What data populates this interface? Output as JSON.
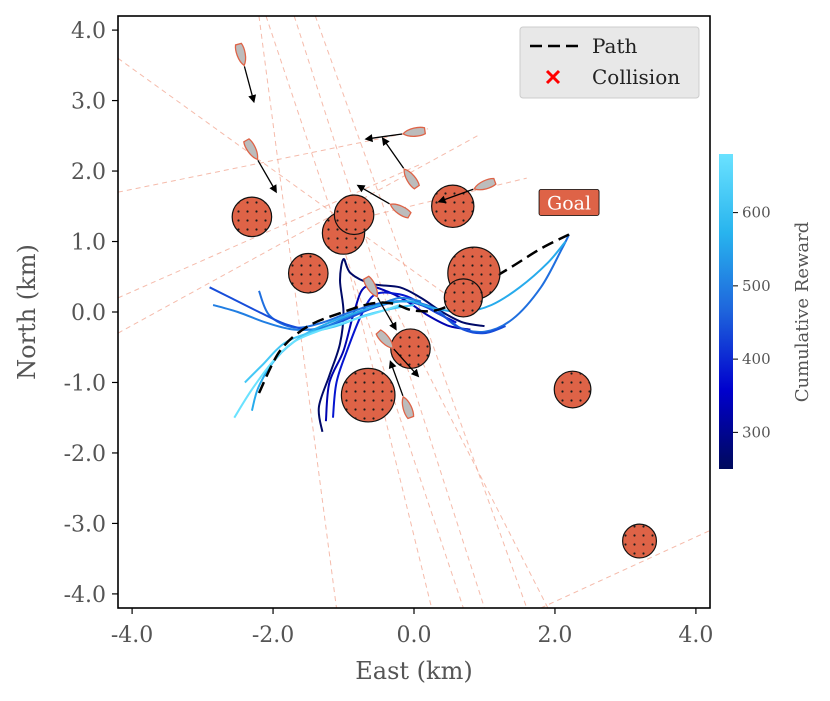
{
  "chart_data": {
    "type": "scatter",
    "title": "",
    "xlabel": "East (km)",
    "ylabel": "North (km)",
    "xlim": [
      -4.2,
      4.2
    ],
    "ylim": [
      -4.2,
      4.2
    ],
    "xticks": [
      "-4.0",
      "-2.0",
      "0.0",
      "2.0",
      "4.0"
    ],
    "yticks": [
      "-4.0",
      "-3.0",
      "-2.0",
      "-1.0",
      "0.0",
      "1.0",
      "2.0",
      "3.0",
      "4.0"
    ],
    "grid": false,
    "legend": {
      "placement": "top-right",
      "entries": [
        {
          "label": "Path",
          "symbol": "dashed-line",
          "color": "#000000"
        },
        {
          "label": "Collision",
          "symbol": "x-marker",
          "color": "#ff0000"
        }
      ]
    },
    "goal": {
      "label": "Goal",
      "x": 2.2,
      "y": 1.1
    },
    "path": [
      [
        -2.2,
        -1.15
      ],
      [
        -1.9,
        -0.55
      ],
      [
        -1.5,
        -0.2
      ],
      [
        -1.0,
        0.0
      ],
      [
        -0.6,
        0.12
      ],
      [
        -0.3,
        0.12
      ],
      [
        0.0,
        0.02
      ],
      [
        0.4,
        0.05
      ],
      [
        0.9,
        0.35
      ],
      [
        1.4,
        0.65
      ],
      [
        1.8,
        0.9
      ],
      [
        2.2,
        1.1
      ]
    ],
    "obstacles": [
      {
        "x": -2.3,
        "y": 1.35,
        "r": 0.28
      },
      {
        "x": -1.5,
        "y": 0.55,
        "r": 0.28
      },
      {
        "x": -1.0,
        "y": 1.12,
        "r": 0.3
      },
      {
        "x": -0.85,
        "y": 1.38,
        "r": 0.28
      },
      {
        "x": 0.55,
        "y": 1.5,
        "r": 0.3
      },
      {
        "x": 0.85,
        "y": 0.55,
        "r": 0.37
      },
      {
        "x": 0.7,
        "y": 0.2,
        "r": 0.27
      },
      {
        "x": -0.05,
        "y": -0.52,
        "r": 0.28
      },
      {
        "x": -0.65,
        "y": -1.18,
        "r": 0.38
      },
      {
        "x": 2.25,
        "y": -1.1,
        "r": 0.26
      },
      {
        "x": 3.2,
        "y": -3.25,
        "r": 0.24
      }
    ],
    "vessels": [
      {
        "x": -2.45,
        "y": 3.65,
        "heading": 165
      },
      {
        "x": -2.3,
        "y": 2.3,
        "heading": 150
      },
      {
        "x": 0.0,
        "y": 2.55,
        "heading": 262
      },
      {
        "x": -0.05,
        "y": 1.9,
        "heading": 325
      },
      {
        "x": 1.0,
        "y": 1.8,
        "heading": 250
      },
      {
        "x": -0.2,
        "y": 1.45,
        "heading": 300
      },
      {
        "x": -0.6,
        "y": 0.35,
        "heading": 150
      },
      {
        "x": -0.4,
        "y": -0.4,
        "heading": 138
      },
      {
        "x": -0.1,
        "y": -1.35,
        "heading": 340
      }
    ],
    "colorbar": {
      "label": "Cumulative Reward",
      "min": 250,
      "max": 680,
      "ticks": [
        300,
        400,
        500,
        600
      ],
      "colors": [
        "#000a5c",
        "#0000cd",
        "#1e64dc",
        "#28b4ee",
        "#6ae2ff"
      ]
    },
    "trajectories": [
      {
        "reward": 260,
        "points": [
          [
            -1.3,
            -1.7
          ],
          [
            -1.35,
            -1.35
          ],
          [
            -1.2,
            -0.9
          ],
          [
            -1.05,
            -0.45
          ],
          [
            -1.0,
            0.0
          ],
          [
            -1.05,
            0.45
          ],
          [
            -1.0,
            0.75
          ],
          [
            -0.9,
            0.55
          ],
          [
            -0.6,
            0.4
          ],
          [
            -0.2,
            0.35
          ],
          [
            0.1,
            0.2
          ],
          [
            0.4,
            0.0
          ],
          [
            0.7,
            -0.15
          ],
          [
            1.0,
            -0.2
          ]
        ]
      },
      {
        "reward": 330,
        "points": [
          [
            -1.25,
            -1.55
          ],
          [
            -1.2,
            -1.0
          ],
          [
            -1.0,
            -0.55
          ],
          [
            -0.85,
            0.0
          ],
          [
            -0.7,
            0.35
          ],
          [
            -0.4,
            0.3
          ],
          [
            -0.1,
            0.15
          ],
          [
            0.2,
            -0.05
          ],
          [
            0.5,
            -0.2
          ],
          [
            0.8,
            -0.25
          ]
        ]
      },
      {
        "reward": 380,
        "points": [
          [
            -1.15,
            -1.5
          ],
          [
            -1.1,
            -1.0
          ],
          [
            -0.95,
            -0.55
          ],
          [
            -0.75,
            -0.05
          ],
          [
            -0.55,
            0.25
          ],
          [
            -0.2,
            0.25
          ],
          [
            0.05,
            0.15
          ],
          [
            0.3,
            0.0
          ],
          [
            0.6,
            -0.15
          ]
        ]
      },
      {
        "reward": 480,
        "points": [
          [
            -2.2,
            0.3
          ],
          [
            -2.05,
            -0.05
          ],
          [
            -1.7,
            -0.22
          ],
          [
            -1.3,
            -0.15
          ],
          [
            -0.9,
            0.0
          ],
          [
            -0.5,
            0.12
          ],
          [
            -0.1,
            0.15
          ],
          [
            0.3,
            0.05
          ],
          [
            0.6,
            -0.2
          ],
          [
            1.0,
            -0.28
          ],
          [
            1.4,
            -0.1
          ],
          [
            1.8,
            0.35
          ],
          [
            2.1,
            0.9
          ],
          [
            2.2,
            1.1
          ]
        ]
      },
      {
        "reward": 440,
        "points": [
          [
            -2.9,
            0.35
          ],
          [
            -2.6,
            0.2
          ],
          [
            -2.2,
            0.0
          ],
          [
            -1.8,
            -0.18
          ],
          [
            -1.4,
            -0.25
          ],
          [
            -1.0,
            -0.12
          ],
          [
            -0.6,
            0.05
          ],
          [
            -0.2,
            0.15
          ],
          [
            0.1,
            0.1
          ],
          [
            0.4,
            -0.05
          ],
          [
            0.7,
            -0.25
          ],
          [
            1.0,
            -0.3
          ],
          [
            1.3,
            -0.2
          ]
        ]
      },
      {
        "reward": 500,
        "points": [
          [
            -2.85,
            0.1
          ],
          [
            -2.5,
            0.0
          ],
          [
            -2.1,
            -0.15
          ],
          [
            -1.7,
            -0.25
          ],
          [
            -1.3,
            -0.22
          ],
          [
            -0.9,
            -0.05
          ],
          [
            -0.5,
            0.1
          ],
          [
            -0.2,
            0.2
          ],
          [
            0.1,
            0.15
          ]
        ]
      },
      {
        "reward": 560,
        "points": [
          [
            -2.3,
            -1.4
          ],
          [
            -2.2,
            -1.05
          ],
          [
            -1.95,
            -0.65
          ],
          [
            -1.6,
            -0.35
          ],
          [
            -1.2,
            -0.15
          ],
          [
            -0.8,
            0.0
          ],
          [
            -0.4,
            0.12
          ],
          [
            -0.05,
            0.15
          ],
          [
            0.3,
            0.05
          ],
          [
            0.7,
            0.0
          ],
          [
            1.1,
            0.1
          ],
          [
            1.5,
            0.35
          ],
          [
            1.9,
            0.7
          ],
          [
            2.15,
            1.0
          ]
        ]
      },
      {
        "reward": 620,
        "points": [
          [
            -2.4,
            -1.0
          ],
          [
            -2.15,
            -0.75
          ],
          [
            -1.85,
            -0.45
          ],
          [
            -1.5,
            -0.3
          ],
          [
            -1.1,
            -0.2
          ],
          [
            -0.7,
            -0.05
          ],
          [
            -0.3,
            0.05
          ],
          [
            0.0,
            0.1
          ]
        ]
      },
      {
        "reward": 680,
        "points": [
          [
            -2.55,
            -1.5
          ],
          [
            -2.3,
            -1.1
          ],
          [
            -2.0,
            -0.7
          ],
          [
            -1.7,
            -0.42
          ],
          [
            -1.3,
            -0.25
          ],
          [
            -0.9,
            -0.12
          ],
          [
            -0.5,
            0.0
          ],
          [
            -0.2,
            0.1
          ]
        ]
      }
    ],
    "sensor_rays": [
      [
        [
          -2.2,
          4.2
        ],
        [
          -1.1,
          -4.2
        ]
      ],
      [
        [
          -2.1,
          4.2
        ],
        [
          0.7,
          -4.2
        ]
      ],
      [
        [
          -1.7,
          4.2
        ],
        [
          1.0,
          -4.2
        ]
      ],
      [
        [
          -1.4,
          4.2
        ],
        [
          1.6,
          -4.2
        ]
      ],
      [
        [
          -4.2,
          3.6
        ],
        [
          0.8,
          0.0
        ]
      ],
      [
        [
          -4.2,
          1.7
        ],
        [
          0.2,
          2.6
        ]
      ],
      [
        [
          -4.2,
          0.2
        ],
        [
          0.1,
          2.1
        ]
      ],
      [
        [
          -4.2,
          -0.3
        ],
        [
          0.9,
          2.5
        ]
      ],
      [
        [
          -0.9,
          0.5
        ],
        [
          0.25,
          -4.2
        ]
      ],
      [
        [
          -0.4,
          0.3
        ],
        [
          1.9,
          -4.2
        ]
      ],
      [
        [
          1.8,
          -4.2
        ],
        [
          4.2,
          -3.1
        ]
      ],
      [
        [
          -1.3,
          1.2
        ],
        [
          1.6,
          1.9
        ]
      ]
    ]
  }
}
